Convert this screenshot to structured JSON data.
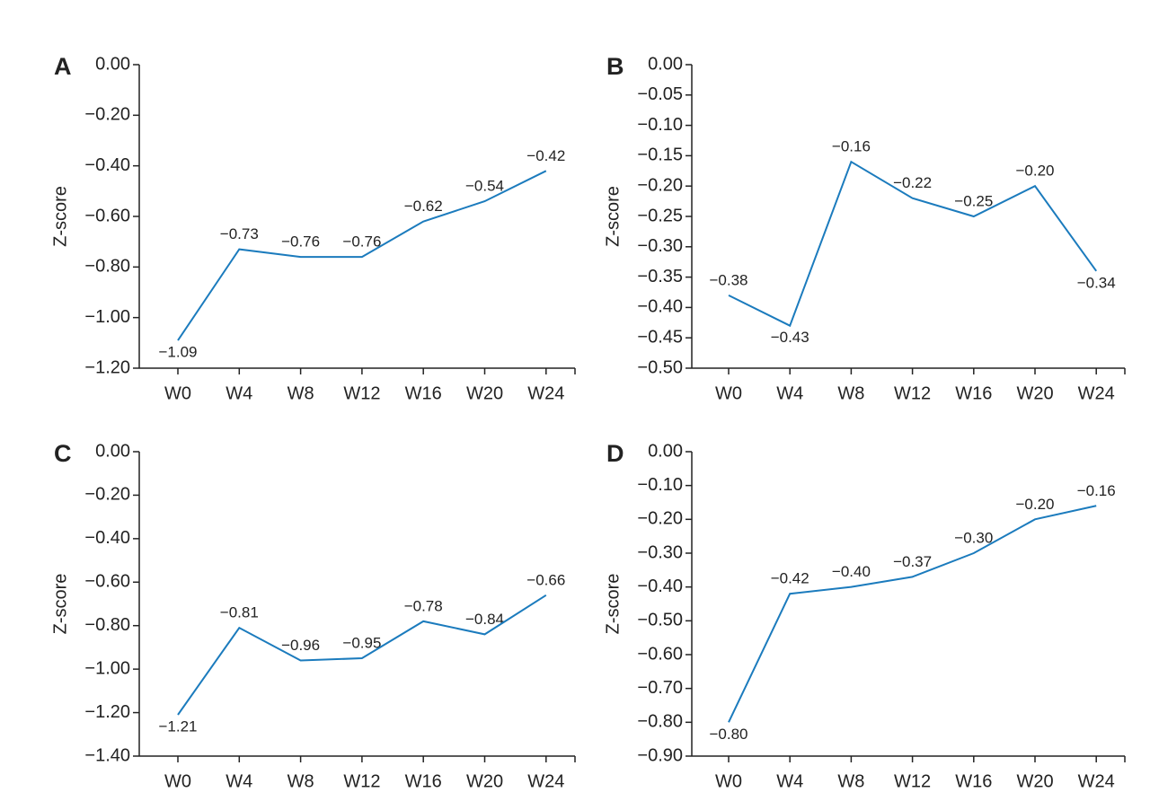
{
  "chart_data": [
    {
      "type": "line",
      "label": "A",
      "y_label": "Z-score",
      "categories": [
        "W0",
        "W4",
        "W8",
        "W12",
        "W16",
        "W20",
        "W24"
      ],
      "values": [
        -1.09,
        -0.73,
        -0.76,
        -0.76,
        -0.62,
        -0.54,
        -0.42
      ],
      "value_labels": [
        "−1.09",
        "−0.73",
        "−0.76",
        "−0.76",
        "−0.62",
        "−0.54",
        "−0.42"
      ],
      "color": "#1b7bbd",
      "ylim": [
        -1.2,
        0
      ],
      "yticks": [
        {
          "value": 0,
          "label": "0.00"
        },
        {
          "value": -0.2,
          "label": "−0.20"
        },
        {
          "value": -0.4,
          "label": "−0.40"
        },
        {
          "value": -0.6,
          "label": "−0.60"
        },
        {
          "value": -0.8,
          "label": "−0.80"
        },
        {
          "value": -1.0,
          "label": "−1.00"
        },
        {
          "value": -1.2,
          "label": "−1.20"
        }
      ]
    },
    {
      "type": "line",
      "label": "B",
      "y_label": "Z-score",
      "categories": [
        "W0",
        "W4",
        "W8",
        "W12",
        "W16",
        "W20",
        "W24"
      ],
      "values": [
        -0.38,
        -0.43,
        -0.16,
        -0.22,
        -0.25,
        -0.2,
        -0.34
      ],
      "value_labels": [
        "−0.38",
        "−0.43",
        "−0.16",
        "−0.22",
        "−0.25",
        "−0.20",
        "−0.34"
      ],
      "color": "#1b7bbd",
      "ylim": [
        -0.5,
        0
      ],
      "yticks": [
        {
          "value": 0,
          "label": "0.00"
        },
        {
          "value": -0.05,
          "label": "−0.05"
        },
        {
          "value": -0.1,
          "label": "−0.10"
        },
        {
          "value": -0.15,
          "label": "−0.15"
        },
        {
          "value": -0.2,
          "label": "−0.20"
        },
        {
          "value": -0.25,
          "label": "−0.25"
        },
        {
          "value": -0.3,
          "label": "−0.30"
        },
        {
          "value": -0.35,
          "label": "−0.35"
        },
        {
          "value": -0.4,
          "label": "−0.40"
        },
        {
          "value": -0.45,
          "label": "−0.45"
        },
        {
          "value": -0.5,
          "label": "−0.50"
        }
      ]
    },
    {
      "type": "line",
      "label": "C",
      "y_label": "Z-score",
      "categories": [
        "W0",
        "W4",
        "W8",
        "W12",
        "W16",
        "W20",
        "W24"
      ],
      "values": [
        -1.21,
        -0.81,
        -0.96,
        -0.95,
        -0.78,
        -0.84,
        -0.66
      ],
      "value_labels": [
        "−1.21",
        "−0.81",
        "−0.96",
        "−0.95",
        "−0.78",
        "−0.84",
        "−0.66"
      ],
      "color": "#1b7bbd",
      "ylim": [
        -1.4,
        0
      ],
      "yticks": [
        {
          "value": 0,
          "label": "0.00"
        },
        {
          "value": -0.2,
          "label": "−0.20"
        },
        {
          "value": -0.4,
          "label": "−0.40"
        },
        {
          "value": -0.6,
          "label": "−0.60"
        },
        {
          "value": -0.8,
          "label": "−0.80"
        },
        {
          "value": -1.0,
          "label": "−1.00"
        },
        {
          "value": -1.2,
          "label": "−1.20"
        },
        {
          "value": -1.4,
          "label": "−1.40"
        }
      ]
    },
    {
      "type": "line",
      "label": "D",
      "y_label": "Z-score",
      "categories": [
        "W0",
        "W4",
        "W8",
        "W12",
        "W16",
        "W20",
        "W24"
      ],
      "values": [
        -0.8,
        -0.42,
        -0.4,
        -0.37,
        -0.3,
        -0.2,
        -0.16
      ],
      "value_labels": [
        "−0.80",
        "−0.42",
        "−0.40",
        "−0.37",
        "−0.30",
        "−0.20",
        "−0.16"
      ],
      "color": "#1b7bbd",
      "ylim": [
        -0.9,
        0
      ],
      "yticks": [
        {
          "value": 0,
          "label": "0.00"
        },
        {
          "value": -0.1,
          "label": "−0.10"
        },
        {
          "value": -0.2,
          "label": "−0.20"
        },
        {
          "value": -0.3,
          "label": "−0.30"
        },
        {
          "value": -0.4,
          "label": "−0.40"
        },
        {
          "value": -0.5,
          "label": "−0.50"
        },
        {
          "value": -0.6,
          "label": "−0.60"
        },
        {
          "value": -0.7,
          "label": "−0.70"
        },
        {
          "value": -0.8,
          "label": "−0.80"
        },
        {
          "value": -0.9,
          "label": "−0.90"
        }
      ]
    }
  ]
}
